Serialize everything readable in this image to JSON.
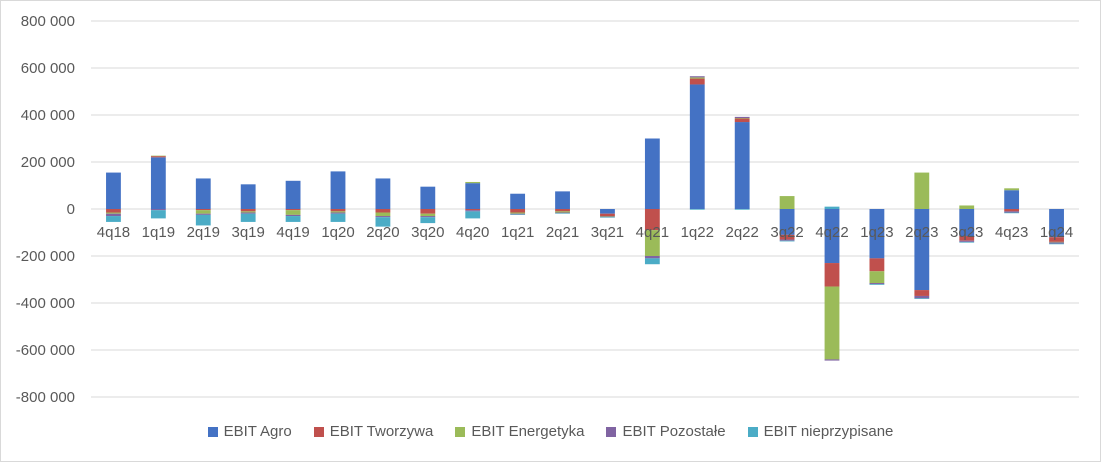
{
  "chart_data": {
    "type": "bar",
    "stacked": true,
    "categories": [
      "4q18",
      "1q19",
      "2q19",
      "3q19",
      "4q19",
      "1q20",
      "2q20",
      "3q20",
      "4q20",
      "1q21",
      "2q21",
      "3q21",
      "4q21",
      "1q22",
      "2q22",
      "3q22",
      "4q22",
      "1q23",
      "2q23",
      "3q23",
      "4q23",
      "1q24"
    ],
    "ylim": [
      -800000,
      800000
    ],
    "yticks": [
      800000,
      600000,
      400000,
      200000,
      0,
      -200000,
      -400000,
      -600000,
      -800000
    ],
    "ytick_labels": [
      "800 000",
      "600 000",
      "400 000",
      "200 000",
      "0",
      "-200 000",
      "-400 000",
      "-600 000",
      "-800 000"
    ],
    "grid": true,
    "legend_position": "bottom",
    "series": [
      {
        "name": "EBIT Agro",
        "color": "#4472C4",
        "values": [
          155000,
          220000,
          130000,
          105000,
          120000,
          160000,
          130000,
          95000,
          110000,
          65000,
          75000,
          -20000,
          300000,
          530000,
          370000,
          -110000,
          -230000,
          -210000,
          -345000,
          -115000,
          80000,
          -120000
        ]
      },
      {
        "name": "EBIT Tworzywa",
        "color": "#C0504D",
        "values": [
          -15000,
          5000,
          -5000,
          -10000,
          -5000,
          -10000,
          -15000,
          -20000,
          -5000,
          -15000,
          -10000,
          -10000,
          -90000,
          25000,
          15000,
          -20000,
          -100000,
          -55000,
          -25000,
          -20000,
          -10000,
          -20000
        ]
      },
      {
        "name": "EBIT Energetyka",
        "color": "#9BBB59",
        "values": [
          -5000,
          2000,
          -15000,
          -5000,
          -20000,
          -5000,
          -15000,
          -10000,
          5000,
          -5000,
          -5000,
          -2000,
          -110000,
          5000,
          2000,
          55000,
          -310000,
          -50000,
          155000,
          15000,
          8000,
          -2000
        ]
      },
      {
        "name": "EBIT Pozostałe",
        "color": "#8064A2",
        "values": [
          -10000,
          -5000,
          -5000,
          -5000,
          -5000,
          -5000,
          -5000,
          -5000,
          -5000,
          -3000,
          -3000,
          -3000,
          -10000,
          5000,
          5000,
          -5000,
          -5000,
          -5000,
          -10000,
          -5000,
          -5000,
          -5000
        ]
      },
      {
        "name": "EBIT nieprzypisane",
        "color": "#4BACC6",
        "values": [
          -25000,
          -35000,
          -45000,
          -35000,
          -25000,
          -35000,
          -40000,
          -25000,
          -30000,
          -2000,
          -2000,
          -2000,
          -25000,
          -3000,
          -3000,
          -3000,
          10000,
          -3000,
          -3000,
          -3000,
          -3000,
          -3000
        ]
      }
    ]
  }
}
